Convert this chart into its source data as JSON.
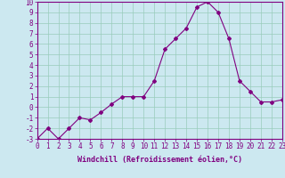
{
  "x": [
    0,
    1,
    2,
    3,
    4,
    5,
    6,
    7,
    8,
    9,
    10,
    11,
    12,
    13,
    14,
    15,
    16,
    17,
    18,
    19,
    20,
    21,
    22,
    23
  ],
  "y": [
    -3,
    -2,
    -3,
    -2,
    -1,
    -1.2,
    -0.5,
    0.3,
    1.0,
    1.0,
    1.0,
    2.5,
    5.5,
    6.5,
    7.5,
    9.5,
    10,
    9,
    6.5,
    2.5,
    1.5,
    0.5,
    0.5,
    0.7
  ],
  "xlim": [
    0,
    23
  ],
  "ylim": [
    -3,
    10
  ],
  "yticks": [
    -3,
    -2,
    -1,
    0,
    1,
    2,
    3,
    4,
    5,
    6,
    7,
    8,
    9,
    10
  ],
  "xticks": [
    0,
    1,
    2,
    3,
    4,
    5,
    6,
    7,
    8,
    9,
    10,
    11,
    12,
    13,
    14,
    15,
    16,
    17,
    18,
    19,
    20,
    21,
    22,
    23
  ],
  "xlabel": "Windchill (Refroidissement éolien,°C)",
  "line_color": "#800080",
  "marker": "D",
  "marker_size": 2.0,
  "bg_color": "#cce8f0",
  "grid_color": "#99ccbb",
  "label_fontsize": 6.0,
  "tick_fontsize": 5.5
}
